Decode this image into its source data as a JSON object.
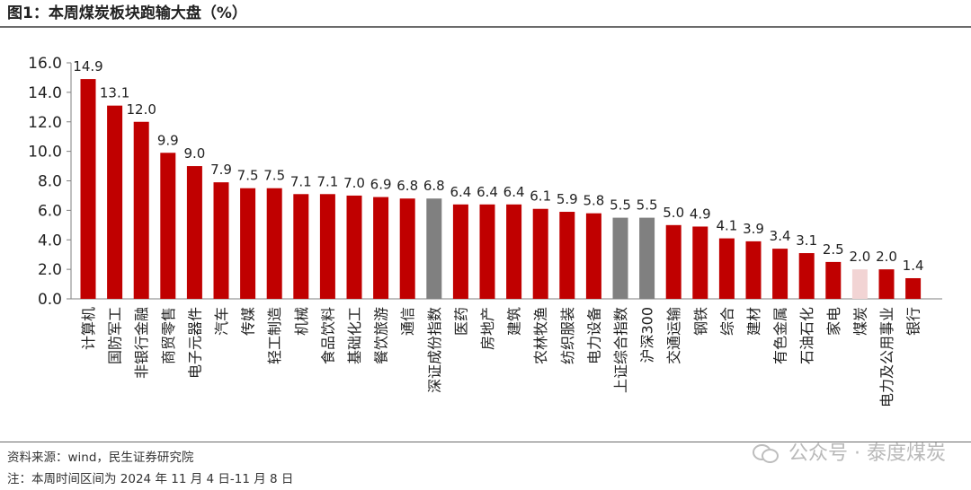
{
  "title": "图1：本周煤炭板块跑输大盘（%）",
  "source": "资料来源：wind，民生证券研究院",
  "note": "注：本周时间区间为 2024 年 11 月 4 日-11 月 8 日",
  "watermark": "公众号 · 泰度煤炭",
  "colors": {
    "default": "#c00000",
    "index": "#808080",
    "highlight": "#f2d4d4"
  },
  "chart_data": {
    "type": "bar",
    "title": "图1：本周煤炭板块跑输大盘（%）",
    "ylim": [
      0,
      16
    ],
    "yticks": [
      "0.0",
      "2.0",
      "4.0",
      "6.0",
      "8.0",
      "10.0",
      "12.0",
      "14.0",
      "16.0"
    ],
    "grid": false,
    "categories": [
      "计算机",
      "国防军工",
      "非银行金融",
      "商贸零售",
      "电子元器件",
      "汽车",
      "传媒",
      "轻工制造",
      "机械",
      "食品饮料",
      "基础化工",
      "餐饮旅游",
      "通信",
      "深证成份指数",
      "医药",
      "房地产",
      "建筑",
      "农林牧渔",
      "纺织服装",
      "电力设备",
      "上证综合指数",
      "沪深300",
      "交通运输",
      "钢铁",
      "综合",
      "建材",
      "有色金属",
      "石油石化",
      "家电",
      "煤炭",
      "电力及公用事业",
      "银行"
    ],
    "values": [
      14.9,
      13.1,
      12.0,
      9.9,
      9.0,
      7.9,
      7.5,
      7.5,
      7.1,
      7.1,
      7.0,
      6.9,
      6.8,
      6.8,
      6.4,
      6.4,
      6.4,
      6.1,
      5.9,
      5.8,
      5.5,
      5.5,
      5.0,
      4.9,
      4.1,
      3.9,
      3.4,
      3.1,
      2.5,
      2.0,
      2.0,
      1.4
    ],
    "labels": [
      "14.9",
      "13.1",
      "12.0",
      "9.9",
      "9.0",
      "7.9",
      "7.5",
      "7.5",
      "7.1",
      "7.1",
      "7.0",
      "6.9",
      "6.8",
      "6.8",
      "6.4",
      "6.4",
      "6.4",
      "6.1",
      "5.9",
      "5.8",
      "5.5",
      "5.5",
      "5.0",
      "4.9",
      "4.1",
      "3.9",
      "3.4",
      "3.1",
      "2.5",
      "2.0",
      "2.0",
      "1.4"
    ],
    "bar_colors": [
      "default",
      "default",
      "default",
      "default",
      "default",
      "default",
      "default",
      "default",
      "default",
      "default",
      "default",
      "default",
      "default",
      "index",
      "default",
      "default",
      "default",
      "default",
      "default",
      "default",
      "index",
      "index",
      "default",
      "default",
      "default",
      "default",
      "default",
      "default",
      "default",
      "highlight",
      "default",
      "default"
    ]
  }
}
